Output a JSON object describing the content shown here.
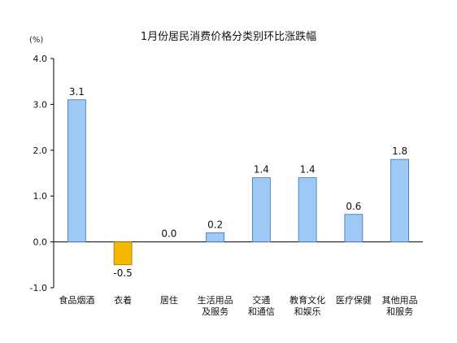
{
  "chart_data": {
    "type": "bar",
    "title": "1月份居民消费价格分类别环比涨跌幅",
    "unit": "(%)",
    "ylim": [
      -1.0,
      4.0
    ],
    "yticks": [
      "4.0",
      "3.0",
      "2.0",
      "1.0",
      "0.0",
      "-1.0"
    ],
    "ytick_values": [
      4.0,
      3.0,
      2.0,
      1.0,
      0.0,
      -1.0
    ],
    "categories": [
      [
        "食品烟酒"
      ],
      [
        "衣着"
      ],
      [
        "居住"
      ],
      [
        "生活用品",
        "及服务"
      ],
      [
        "交通",
        "和通信"
      ],
      [
        "教育文化",
        "和娱乐"
      ],
      [
        "医疗保健"
      ],
      [
        "其他用品",
        "和服务"
      ]
    ],
    "values": [
      3.1,
      -0.5,
      0.0,
      0.2,
      1.4,
      1.4,
      0.6,
      1.8
    ],
    "value_labels": [
      "3.1",
      "-0.5",
      "0.0",
      "0.2",
      "1.4",
      "1.4",
      "0.6",
      "1.8"
    ],
    "colors": {
      "positive_fill": "#9ec9f5",
      "positive_stroke": "#3a6fb3",
      "negative_fill": "#f5b800",
      "negative_stroke": "#a07800",
      "axis": "#000000"
    },
    "grid": false
  }
}
